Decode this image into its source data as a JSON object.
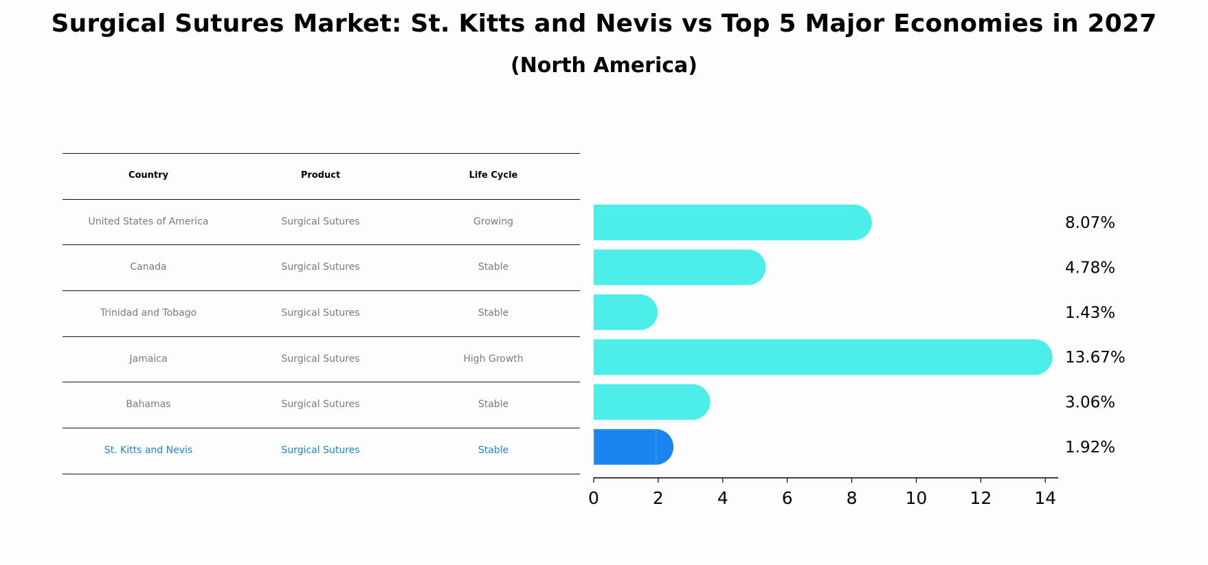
{
  "chart_data": {
    "type": "bar",
    "orientation": "horizontal",
    "title": "Surgical Sutures Market: St. Kitts and Nevis vs Top 5 Major Economies in 2027",
    "subtitle": "(North America)",
    "categories": [
      "United States of America",
      "Canada",
      "Trinidad and Tobago",
      "Jamaica",
      "Bahamas",
      "St. Kitts and Nevis"
    ],
    "values": [
      8.07,
      4.78,
      1.43,
      13.67,
      3.06,
      1.92
    ],
    "value_labels": [
      "8.07%",
      "4.78%",
      "1.43%",
      "13.67%",
      "3.06%",
      "1.92%"
    ],
    "highlight_index": 5,
    "xlim": [
      0,
      14.4
    ],
    "xticks": [
      0,
      2,
      4,
      6,
      8,
      10,
      12,
      14
    ],
    "colors": {
      "bar": "#4deeea",
      "highlight": "#1a85f0"
    }
  },
  "table": {
    "headers": [
      "Country",
      "Product",
      "Life Cycle"
    ],
    "rows": [
      [
        "United States of America",
        "Surgical Sutures",
        "Growing"
      ],
      [
        "Canada",
        "Surgical Sutures",
        "Stable"
      ],
      [
        "Trinidad and Tobago",
        "Surgical Sutures",
        "Stable"
      ],
      [
        "Jamaica",
        "Surgical Sutures",
        "High Growth"
      ],
      [
        "Bahamas",
        "Surgical Sutures",
        "Stable"
      ],
      [
        "St. Kitts and Nevis",
        "Surgical Sutures",
        "Stable"
      ]
    ],
    "colors": {
      "text": "#7a7a7a",
      "highlight_text": "#1a85d6"
    }
  }
}
